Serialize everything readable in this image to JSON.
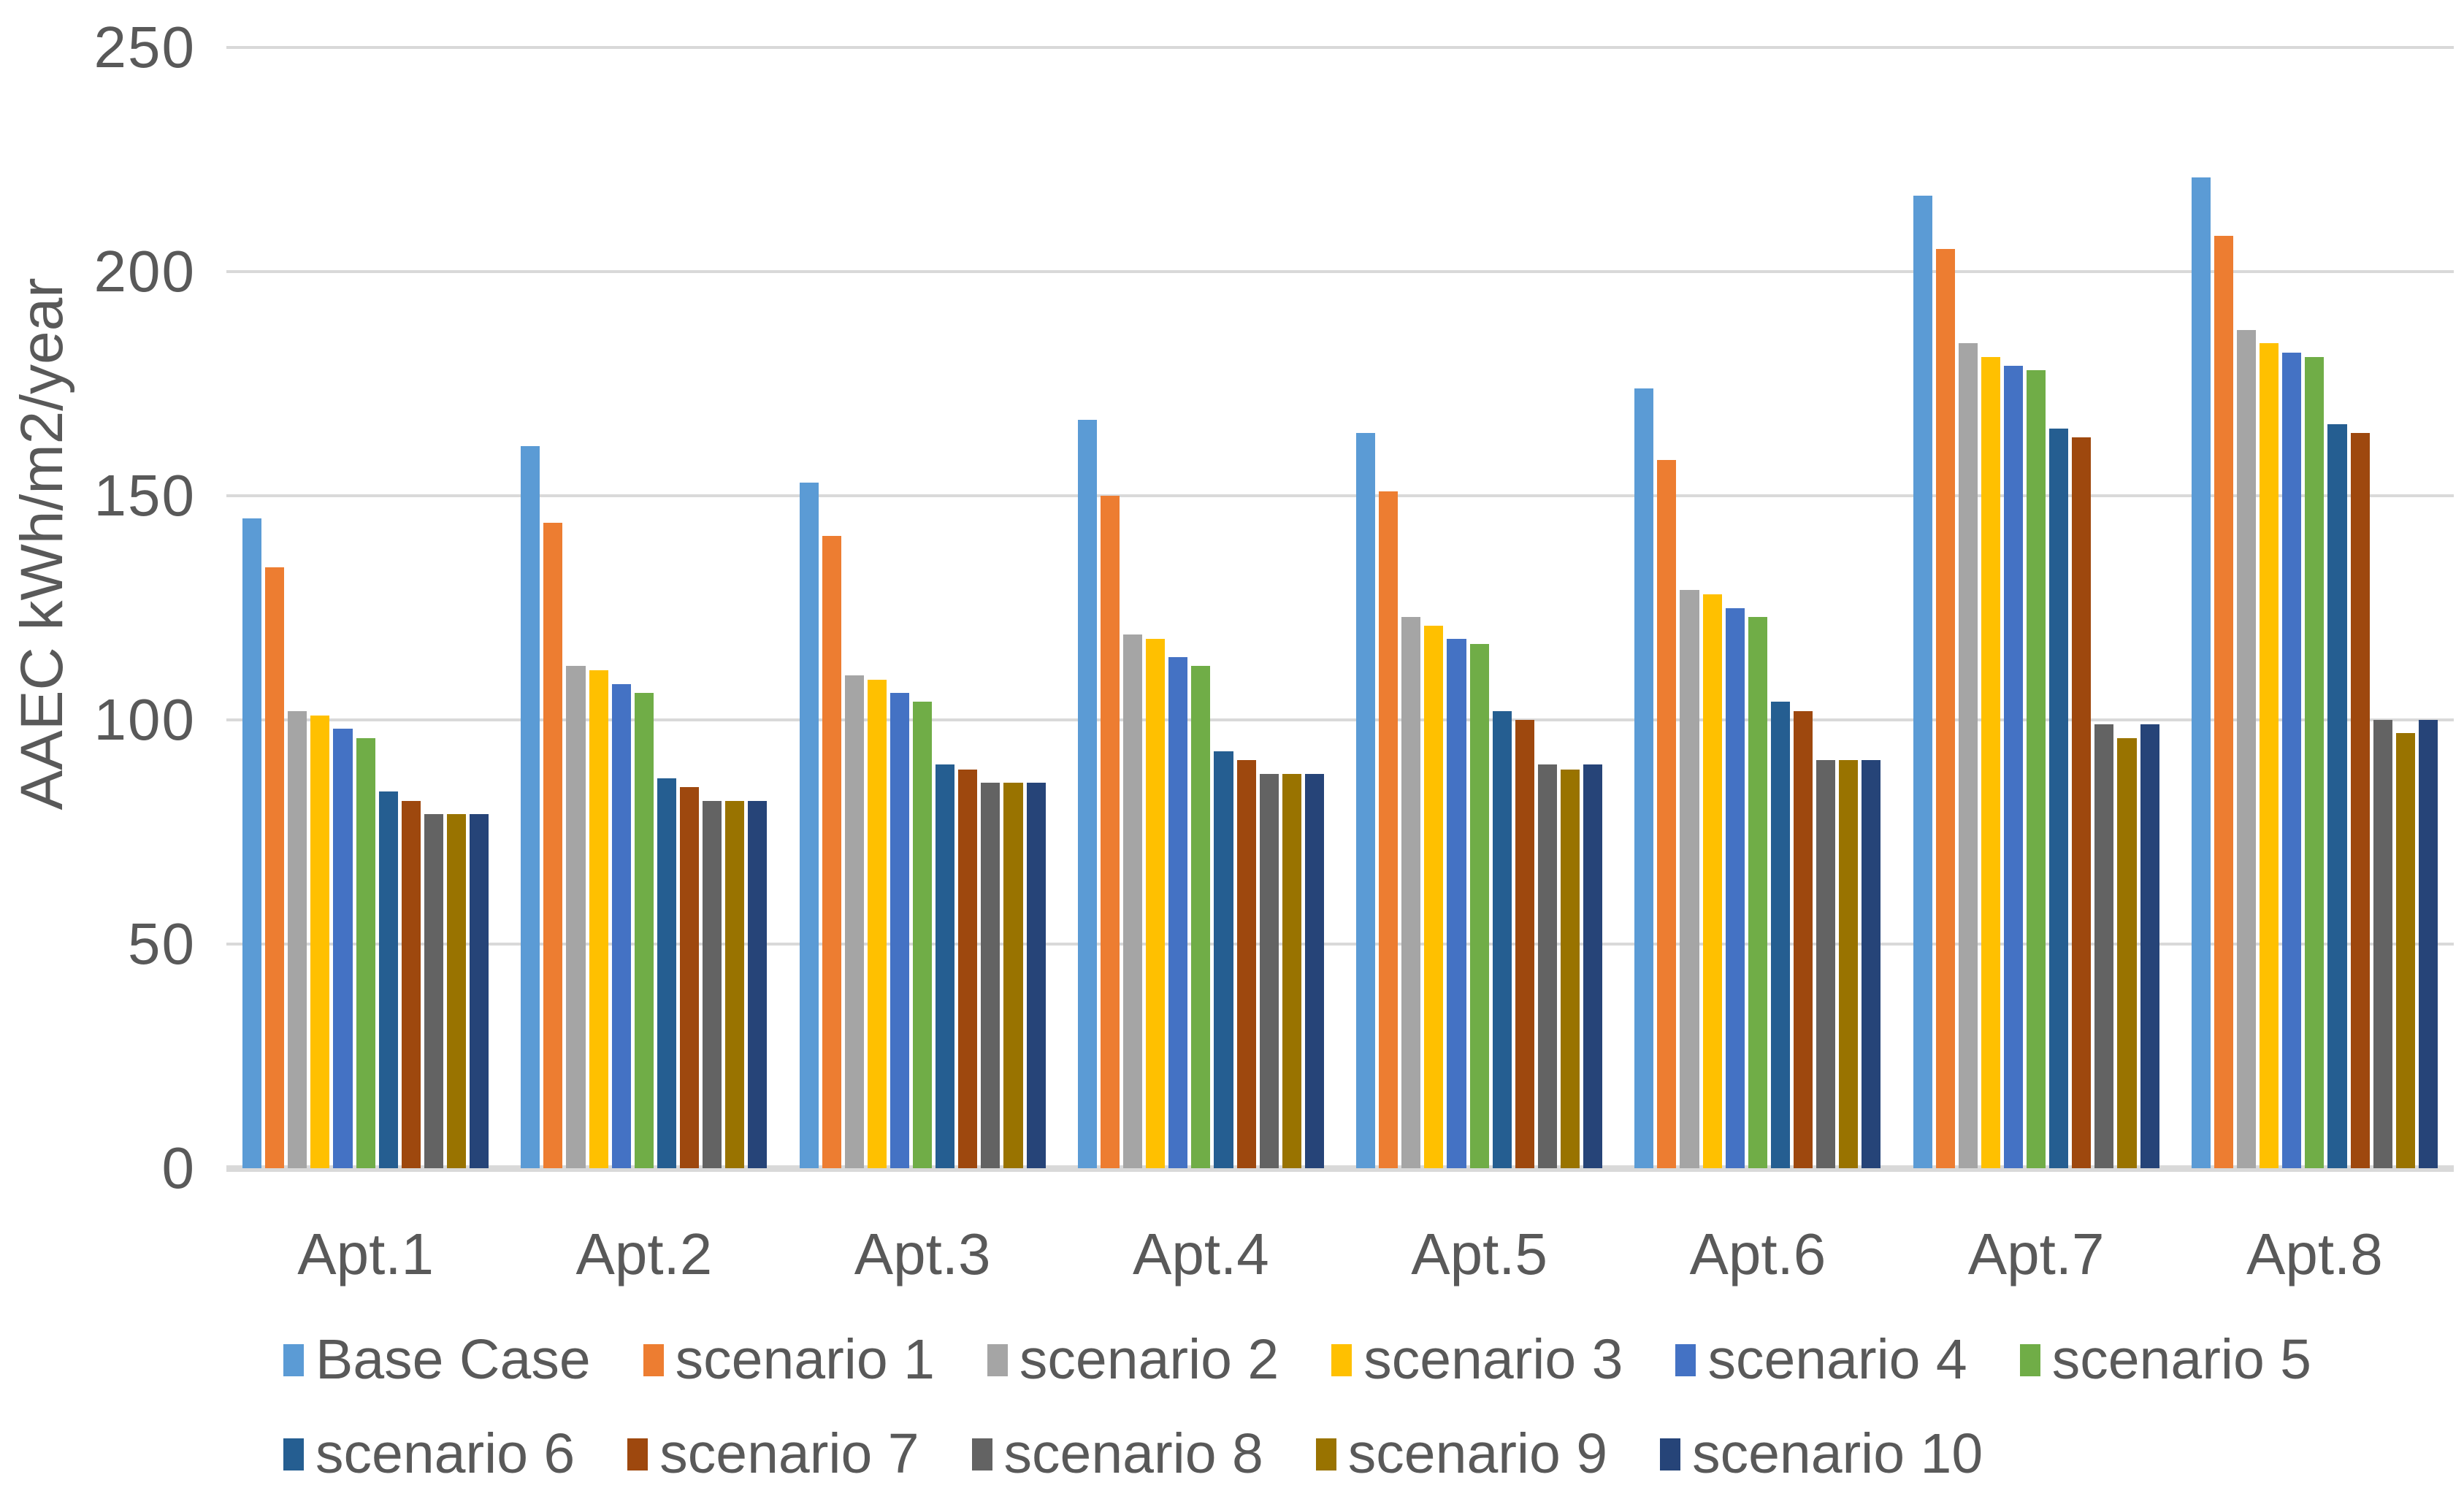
{
  "styles": {
    "background": "#FFFFFF",
    "text_color": "#595959",
    "grid_color": "#D9D9D9"
  },
  "chart_data": {
    "type": "bar",
    "title": "",
    "xlabel": "",
    "ylabel": "AAEC kWh/m2/year",
    "ylim": [
      0,
      250
    ],
    "yticks": [
      0,
      50,
      100,
      150,
      200,
      250
    ],
    "grid": "horizontal",
    "legend_position": "bottom",
    "legend_rows": [
      6,
      5
    ],
    "categories": [
      "Apt.1",
      "Apt.2",
      "Apt.3",
      "Apt.4",
      "Apt.5",
      "Apt.6",
      "Apt.7",
      "Apt.8"
    ],
    "series": [
      {
        "name": "Base Case",
        "color": "#5B9BD5",
        "values": [
          145,
          161,
          153,
          167,
          164,
          174,
          217,
          221
        ]
      },
      {
        "name": "scenario 1",
        "color": "#ED7D31",
        "values": [
          134,
          144,
          141,
          150,
          151,
          158,
          205,
          208
        ]
      },
      {
        "name": "scenario 2",
        "color": "#A5A5A5",
        "values": [
          102,
          112,
          110,
          119,
          123,
          129,
          184,
          187
        ]
      },
      {
        "name": "scenario 3",
        "color": "#FFC000",
        "values": [
          101,
          111,
          109,
          118,
          121,
          128,
          181,
          184
        ]
      },
      {
        "name": "scenario 4",
        "color": "#4472C4",
        "values": [
          98,
          108,
          106,
          114,
          118,
          125,
          179,
          182
        ]
      },
      {
        "name": "scenario 5",
        "color": "#70AD47",
        "values": [
          96,
          106,
          104,
          112,
          117,
          123,
          178,
          181
        ]
      },
      {
        "name": "scenario 6",
        "color": "#255E91",
        "values": [
          84,
          87,
          90,
          93,
          102,
          104,
          165,
          166
        ]
      },
      {
        "name": "scenario 7",
        "color": "#9E480E",
        "values": [
          82,
          85,
          89,
          91,
          100,
          102,
          163,
          164
        ]
      },
      {
        "name": "scenario 8",
        "color": "#636363",
        "values": [
          79,
          82,
          86,
          88,
          90,
          91,
          99,
          100
        ]
      },
      {
        "name": "scenario 9",
        "color": "#997300",
        "values": [
          79,
          82,
          86,
          88,
          89,
          91,
          96,
          97
        ]
      },
      {
        "name": "scenario 10",
        "color": "#264478",
        "values": [
          79,
          82,
          86,
          88,
          90,
          91,
          99,
          100
        ]
      }
    ]
  }
}
